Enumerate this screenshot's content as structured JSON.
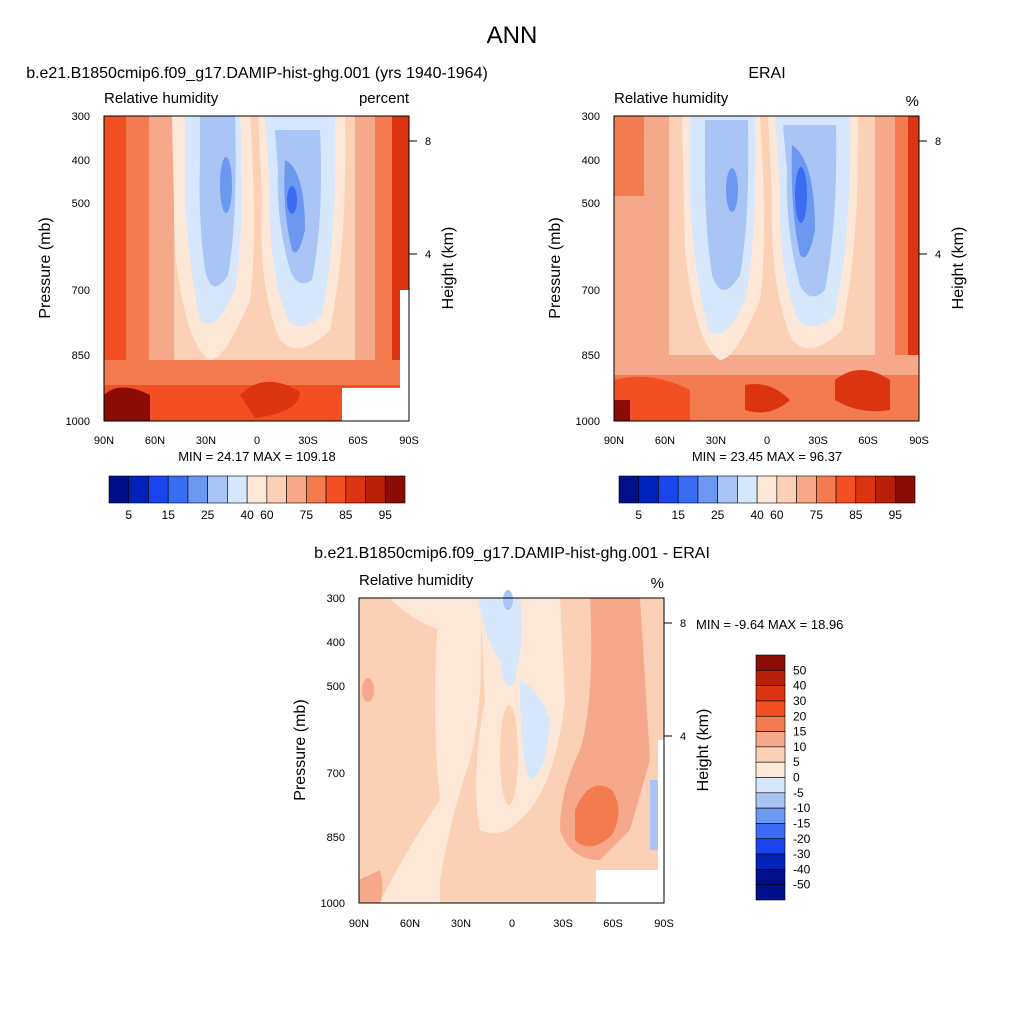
{
  "page_title": "ANN",
  "chart_data": [
    {
      "type": "heatmap",
      "title": "b.e21.B1850cmip6.f09_g17.DAMIP-hist-ghg.001 (yrs 1940-1964)",
      "left_label": "Relative humidity",
      "right_label": "percent",
      "xlabel": "",
      "ylabel": "Pressure (mb)",
      "y2label": "Height (km)",
      "x_ticks": [
        "90N",
        "60N",
        "30N",
        "0",
        "30S",
        "60S",
        "90S"
      ],
      "y_ticks": [
        "300",
        "400",
        "500",
        "700",
        "850",
        "1000"
      ],
      "y2_ticks": [
        "8",
        "4"
      ],
      "stats": "MIN =  24.17  MAX = 109.18",
      "min": 24.17,
      "max": 109.18,
      "colorbar": {
        "orientation": "horizontal",
        "labels": [
          "5",
          "15",
          "25",
          "40",
          "60",
          "75",
          "85",
          "95"
        ]
      }
    },
    {
      "type": "heatmap",
      "title": "ERAI",
      "left_label": "Relative humidity",
      "right_label": "%",
      "xlabel": "",
      "ylabel": "Pressure (mb)",
      "y2label": "Height (km)",
      "x_ticks": [
        "90N",
        "60N",
        "30N",
        "0",
        "30S",
        "60S",
        "90S"
      ],
      "y_ticks": [
        "300",
        "400",
        "500",
        "700",
        "850",
        "1000"
      ],
      "y2_ticks": [
        "8",
        "4"
      ],
      "stats": "MIN =  23.45  MAX =  96.37",
      "min": 23.45,
      "max": 96.37,
      "colorbar": {
        "orientation": "horizontal",
        "labels": [
          "5",
          "15",
          "25",
          "40",
          "60",
          "75",
          "85",
          "95"
        ]
      }
    },
    {
      "type": "heatmap",
      "title": "b.e21.B1850cmip6.f09_g17.DAMIP-hist-ghg.001 - ERAI",
      "left_label": "Relative humidity",
      "right_label": "%",
      "xlabel": "",
      "ylabel": "Pressure (mb)",
      "y2label": "Height (km)",
      "x_ticks": [
        "90N",
        "60N",
        "30N",
        "0",
        "30S",
        "60S",
        "90S"
      ],
      "y_ticks": [
        "300",
        "400",
        "500",
        "700",
        "850",
        "1000"
      ],
      "y2_ticks": [
        "8",
        "4"
      ],
      "stats": "MIN =  -9.64  MAX =  18.96",
      "min": -9.64,
      "max": 18.96,
      "colorbar": {
        "orientation": "vertical",
        "labels": [
          "50",
          "40",
          "30",
          "20",
          "15",
          "10",
          "5",
          "0",
          "-5",
          "-10",
          "-15",
          "-20",
          "-30",
          "-40",
          "-50"
        ]
      }
    }
  ],
  "colors": {
    "seq": [
      "#000e8a",
      "#0022b8",
      "#1a45ee",
      "#3b6df4",
      "#6d98f2",
      "#a8c5f5",
      "#d6e6fb",
      "#fde8d8",
      "#fbd0b4",
      "#f6a98a",
      "#f47a50",
      "#f24f22",
      "#dc3410",
      "#b81f08",
      "#8a0c04"
    ],
    "div": [
      "#8a0c04",
      "#b81f08",
      "#dc3410",
      "#f24f22",
      "#f47a50",
      "#f6a98a",
      "#fbd0b4",
      "#fde8d8",
      "#d6e6fb",
      "#a8c5f5",
      "#6d98f2",
      "#3b6df4",
      "#1a45ee",
      "#0022b8",
      "#000e8a"
    ]
  }
}
